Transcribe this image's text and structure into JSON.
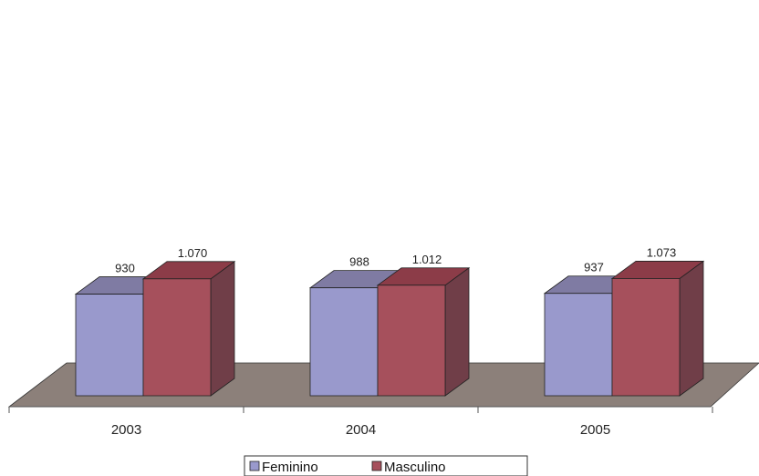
{
  "chart_data": {
    "type": "bar",
    "categories": [
      "2003",
      "2004",
      "2005"
    ],
    "series": [
      {
        "name": "Feminino",
        "values": [
          930,
          988,
          937
        ],
        "labels": [
          "930",
          "988",
          "937"
        ],
        "color": "#9999cc",
        "top_color": "#7f7ba3"
      },
      {
        "name": "Masculino",
        "values": [
          1070,
          1012,
          1073
        ],
        "labels": [
          "1.070",
          "1.012",
          "1.073"
        ],
        "color": "#a6505c",
        "top_color": "#8c3c48",
        "side_color": "#703e48"
      }
    ],
    "floor_color": "#8c807a",
    "grid": false,
    "legend_position": "bottom-center",
    "three_d": true
  }
}
